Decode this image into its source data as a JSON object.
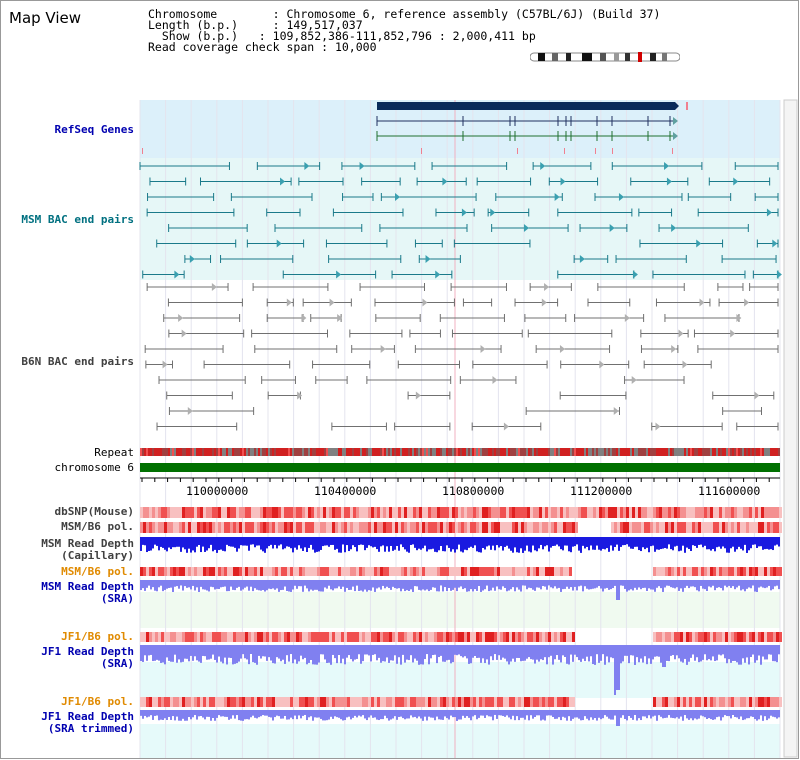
{
  "title": "Map View",
  "info": {
    "chromosome_label": "Chromosome",
    "chromosome_value": "Chromosome 6, reference assembly (C57BL/6J) (Build 37)",
    "length_label": "Length (b.p.)",
    "length_value": "149,517,037",
    "show_label": "Show (b.p.)",
    "show_value": "109,852,386-111,852,796 : 2,000,411 bp",
    "coverage_label": "Read coverage check span",
    "coverage_value": "10,000"
  },
  "tracks": {
    "refseq": "RefSeq Genes",
    "msm_bac": "MSM BAC end pairs",
    "b6n_bac": "B6N BAC end pairs",
    "repeat": "Repeat",
    "chromosome": "chromosome 6",
    "dbsnp": "dbSNP(Mouse)",
    "msm_b6_pol_1": "MSM/B6 pol.",
    "msm_depth_cap_1": "MSM Read Depth",
    "msm_depth_cap_2": "(Capillary)",
    "msm_b6_pol_2": "MSM/B6 pol.",
    "msm_depth_sra_1": "MSM Read Depth",
    "msm_depth_sra_2": "(SRA)",
    "jf1_b6_pol_1": "JF1/B6 pol.",
    "jf1_depth_sra_1": "JF1 Read Depth",
    "jf1_depth_sra_2": "(SRA)",
    "jf1_b6_pol_2": "JF1/B6 pol.",
    "jf1_depth_trim_1": "JF1 Read Depth",
    "jf1_depth_trim_2": "(SRA trimmed)"
  },
  "axis_ticks": [
    "110000000",
    "110400000",
    "110800000",
    "111200000",
    "111600000"
  ],
  "colors": {
    "refseq_bg": "#dcf0fa",
    "msm_bac_bg": "#e6f7f7",
    "gene": "#0a2a5a",
    "msm_feature": "#1a7a8a",
    "b6n_feature": "#707070",
    "chromosome": "#007000",
    "depth_blue": "#1a1ae0",
    "depth_light": "#8080f0",
    "snp_red": "#f06060"
  }
}
